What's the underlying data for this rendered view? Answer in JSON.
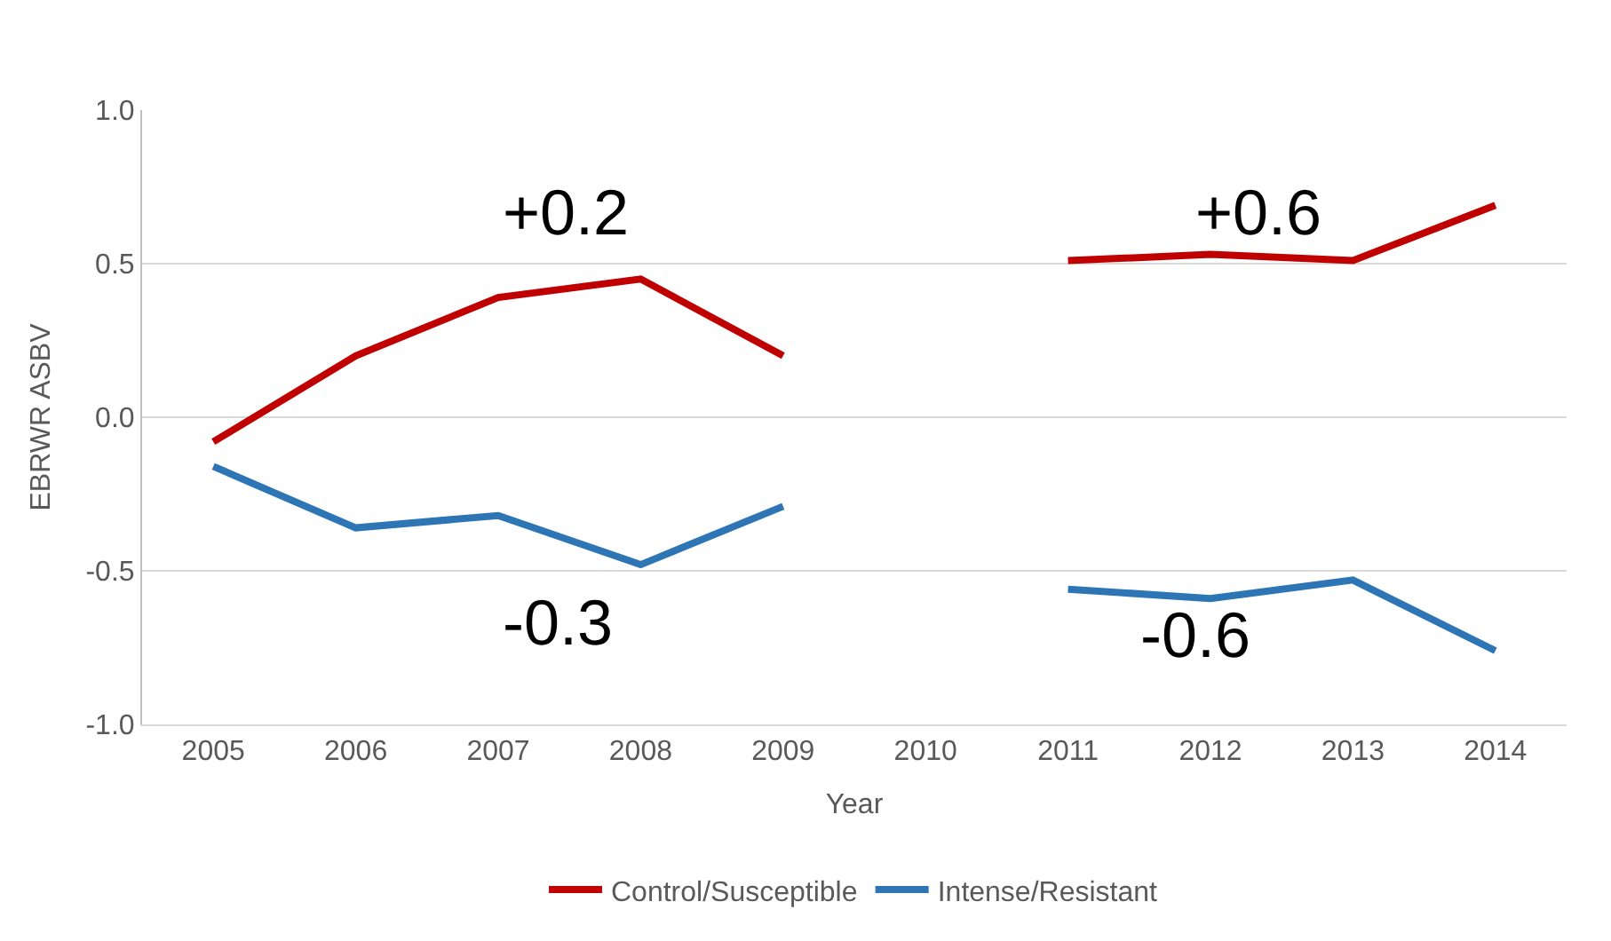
{
  "chart_data": {
    "type": "line",
    "xlabel": "Year",
    "ylabel": "EBRWR ASBV",
    "categories": [
      "2005",
      "2006",
      "2007",
      "2008",
      "2009",
      "2010",
      "2011",
      "2012",
      "2013",
      "2014"
    ],
    "series": [
      {
        "name": "Control/Susceptible",
        "color": "#c00000",
        "values": [
          -0.08,
          0.2,
          0.39,
          0.45,
          0.2,
          null,
          0.51,
          0.53,
          0.51,
          0.69
        ]
      },
      {
        "name": "Intense/Resistant",
        "color": "#2e75b6",
        "values": [
          -0.16,
          -0.36,
          -0.32,
          -0.48,
          -0.29,
          null,
          -0.56,
          -0.59,
          -0.53,
          -0.76
        ]
      }
    ],
    "ylim": [
      -1.0,
      1.0
    ],
    "yticks": [
      {
        "value": -1.0,
        "label": "-1.0"
      },
      {
        "value": -0.5,
        "label": "-0.5"
      },
      {
        "value": 0.0,
        "label": "0.0"
      },
      {
        "value": 0.5,
        "label": "0.5"
      },
      {
        "value": 1.0,
        "label": "1.0"
      }
    ],
    "annotations": [
      "+0.2",
      "-0.3",
      "+0.6",
      "-0.6"
    ],
    "grid": "y",
    "legend": "bottom",
    "marker": "none",
    "line_style": "solid"
  }
}
